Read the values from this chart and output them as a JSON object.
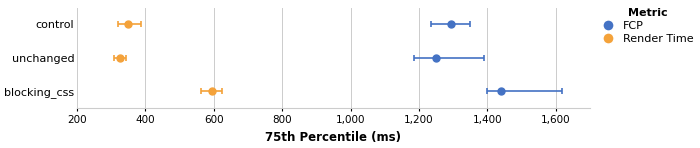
{
  "groups": [
    "control",
    "unchanged",
    "blocking_css"
  ],
  "fcp": {
    "values": [
      1295,
      1250,
      1440
    ],
    "ci_low": [
      1235,
      1185,
      1400
    ],
    "ci_high": [
      1350,
      1390,
      1620
    ],
    "color": "#4472C4"
  },
  "render_time": {
    "values": [
      350,
      325,
      595
    ],
    "ci_low": [
      320,
      308,
      563
    ],
    "ci_high": [
      388,
      342,
      625
    ],
    "color": "#F4A23A"
  },
  "xlabel": "75th Percentile (ms)",
  "xlim": [
    200,
    1700
  ],
  "xticks": [
    200,
    400,
    600,
    800,
    1000,
    1200,
    1400,
    1600
  ],
  "xtick_labels": [
    "200",
    "400",
    "600",
    "800",
    "1,000",
    "1,200",
    "1,400",
    "1,600"
  ],
  "legend_title": "Metric",
  "legend_labels": [
    "FCP",
    "Render Time"
  ],
  "marker_size": 5,
  "capsize": 2,
  "background_color": "#ffffff",
  "grid_color": "#cccccc"
}
